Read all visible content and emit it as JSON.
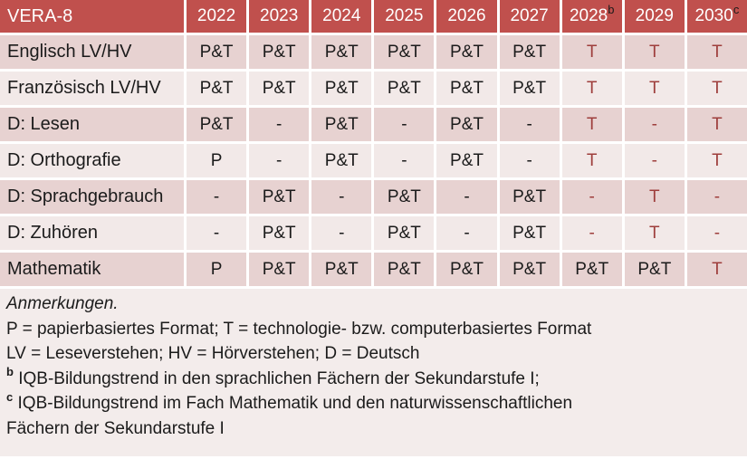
{
  "table": {
    "title": "VERA-8",
    "columns": [
      {
        "label": "2022",
        "sup": ""
      },
      {
        "label": "2023",
        "sup": ""
      },
      {
        "label": "2024",
        "sup": ""
      },
      {
        "label": "2025",
        "sup": ""
      },
      {
        "label": "2026",
        "sup": ""
      },
      {
        "label": "2027",
        "sup": ""
      },
      {
        "label": "2028",
        "sup": "b"
      },
      {
        "label": "2029",
        "sup": ""
      },
      {
        "label": "2030",
        "sup": "c"
      }
    ],
    "rows": [
      {
        "label": "Englisch LV/HV",
        "band": "dark",
        "cells": [
          {
            "t": "P&T"
          },
          {
            "t": "P&T"
          },
          {
            "t": "P&T"
          },
          {
            "t": "P&T"
          },
          {
            "t": "P&T"
          },
          {
            "t": "P&T"
          },
          {
            "t": "T",
            "red": true
          },
          {
            "t": "T",
            "red": true
          },
          {
            "t": "T",
            "red": true
          }
        ]
      },
      {
        "label": "Französisch LV/HV",
        "band": "light",
        "cells": [
          {
            "t": "P&T"
          },
          {
            "t": "P&T"
          },
          {
            "t": "P&T"
          },
          {
            "t": "P&T"
          },
          {
            "t": "P&T"
          },
          {
            "t": "P&T"
          },
          {
            "t": "T",
            "red": true
          },
          {
            "t": "T",
            "red": true
          },
          {
            "t": "T",
            "red": true
          }
        ]
      },
      {
        "label": "D: Lesen",
        "band": "dark",
        "cells": [
          {
            "t": "P&T"
          },
          {
            "t": "-"
          },
          {
            "t": "P&T"
          },
          {
            "t": "-"
          },
          {
            "t": "P&T"
          },
          {
            "t": "-"
          },
          {
            "t": "T",
            "red": true
          },
          {
            "t": "-",
            "red": true
          },
          {
            "t": "T",
            "red": true
          }
        ]
      },
      {
        "label": "D: Orthografie",
        "band": "light",
        "cells": [
          {
            "t": "P"
          },
          {
            "t": "-"
          },
          {
            "t": "P&T"
          },
          {
            "t": "-"
          },
          {
            "t": "P&T"
          },
          {
            "t": "-"
          },
          {
            "t": "T",
            "red": true
          },
          {
            "t": "-",
            "red": true
          },
          {
            "t": "T",
            "red": true
          }
        ]
      },
      {
        "label": "D: Sprachgebrauch",
        "band": "dark",
        "cells": [
          {
            "t": "-"
          },
          {
            "t": "P&T"
          },
          {
            "t": "-"
          },
          {
            "t": "P&T"
          },
          {
            "t": "-"
          },
          {
            "t": "P&T"
          },
          {
            "t": "-",
            "red": true
          },
          {
            "t": "T",
            "red": true
          },
          {
            "t": "-",
            "red": true
          }
        ]
      },
      {
        "label": "D: Zuhören",
        "band": "light",
        "cells": [
          {
            "t": "-"
          },
          {
            "t": "P&T"
          },
          {
            "t": "-"
          },
          {
            "t": "P&T"
          },
          {
            "t": "-"
          },
          {
            "t": "P&T"
          },
          {
            "t": "-",
            "red": true
          },
          {
            "t": "T",
            "red": true
          },
          {
            "t": "-",
            "red": true
          }
        ]
      },
      {
        "label": "Mathematik",
        "band": "dark",
        "cells": [
          {
            "t": "P"
          },
          {
            "t": "P&T"
          },
          {
            "t": "P&T"
          },
          {
            "t": "P&T"
          },
          {
            "t": "P&T"
          },
          {
            "t": "P&T"
          },
          {
            "t": "P&T"
          },
          {
            "t": "P&T"
          },
          {
            "t": "T",
            "red": true
          }
        ]
      }
    ]
  },
  "notes": {
    "heading": "Anmerkungen.",
    "lines": [
      {
        "parts": [
          {
            "t": "P = papierbasiertes Format; T = technologie- bzw. computerbasiertes Format"
          }
        ]
      },
      {
        "parts": [
          {
            "t": "LV = Leseverstehen; HV = Hörverstehen; D = Deutsch"
          }
        ]
      },
      {
        "parts": [
          {
            "t": "b",
            "sup": true
          },
          {
            "t": " IQB-Bildungstrend in den sprachlichen Fächern der Sekundarstufe I;"
          }
        ]
      },
      {
        "parts": [
          {
            "t": "c",
            "sup": true
          },
          {
            "t": " IQB-Bildungstrend im Fach Mathematik und den naturwissenschaftlichen",
            "wrap": "Fächern der Sekundarstufe I"
          }
        ]
      }
    ]
  },
  "colors": {
    "header-bg": "#C0504D",
    "header-text": "#FFFFFF",
    "sup-text": "#1A1A1A",
    "row-dark": "#E7D2D1",
    "row-light": "#F2E9E8",
    "notes-bg": "#F3ECEB",
    "accent-text": "#9E3E3C",
    "body-text": "#1B1B1B"
  }
}
